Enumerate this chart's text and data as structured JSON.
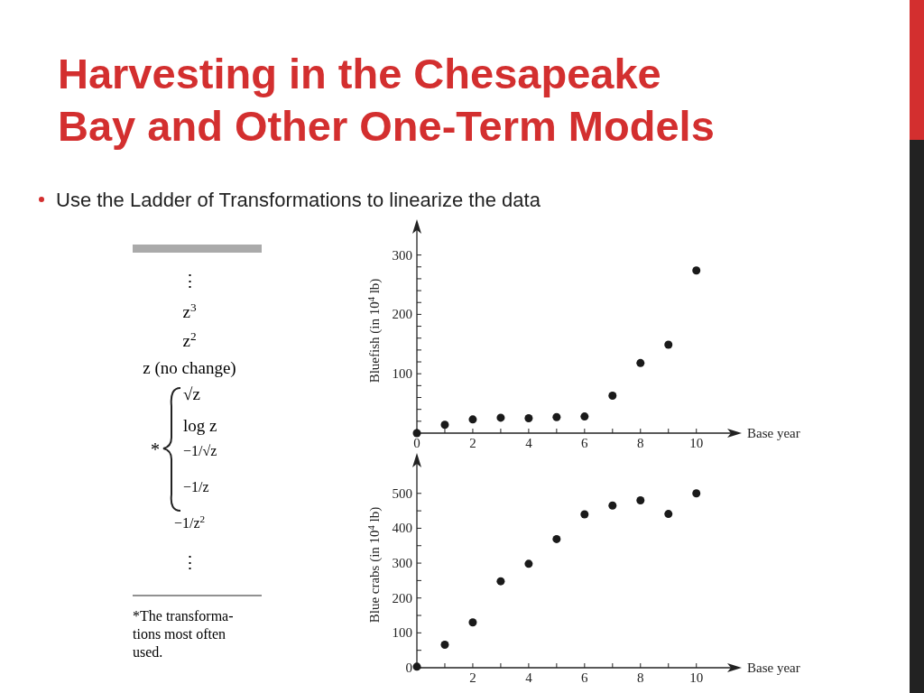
{
  "chart_data": [
    {
      "type": "other",
      "title": "Harvesting in the Chesapeake Bay and Other One-Term Models",
      "subtitle": "Use the Ladder of Transformations to linearize the data",
      "annotations": [
        "⋮",
        "z$^{3}$",
        "z$^{2}$",
        "z (no change)",
        "√z",
        "log z",
        "−1/√z",
        "−1/z",
        "−1/z$^{2}$",
        "⋮",
        "*",
        "*The transforma-",
        "tions most often",
        "used."
      ]
    },
    {
      "type": "scatter",
      "xlabel": "Base year",
      "ylabel": "Bluefish (in 10$^{4}$ lb)",
      "x": [
        0,
        1,
        2,
        3,
        4,
        5,
        6,
        7,
        8,
        9,
        10
      ],
      "marker": "circle",
      "grid": false,
      "series": [
        {
          "color": "#1a1a1a",
          "values": [
            0,
            14,
            23,
            26,
            25,
            27,
            28,
            63,
            118,
            149,
            274
          ]
        }
      ],
      "xlim": [
        0,
        11.3
      ],
      "ylim": [
        0,
        345
      ],
      "xticks": [
        0,
        {
          "value": 1,
          "label": null
        },
        2,
        {
          "value": 3,
          "label": null
        },
        4,
        {
          "value": 5,
          "label": null
        },
        6,
        {
          "value": 7,
          "label": null
        },
        8,
        {
          "value": 9,
          "label": null
        },
        10
      ],
      "yticks": [
        {
          "value": 20,
          "label": null
        },
        {
          "value": 40,
          "label": null
        },
        {
          "value": 60,
          "label": null
        },
        {
          "value": 80,
          "label": null
        },
        100,
        {
          "value": 120,
          "label": null
        },
        {
          "value": 140,
          "label": null
        },
        {
          "value": 160,
          "label": null
        },
        {
          "value": 180,
          "label": null
        },
        200,
        {
          "value": 220,
          "label": null
        },
        {
          "value": 240,
          "label": null
        },
        {
          "value": 260,
          "label": null
        },
        {
          "value": 280,
          "label": null
        },
        300
      ]
    },
    {
      "type": "scatter",
      "xlabel": "Base year",
      "ylabel": "Blue crabs (in 10$^{4}$ lb)",
      "x": [
        0,
        1,
        2,
        3,
        4,
        5,
        6,
        7,
        8,
        9,
        10
      ],
      "marker": "circle",
      "grid": false,
      "series": [
        {
          "color": "#1a1a1a",
          "values": [
            3,
            66,
            130,
            248,
            298,
            369,
            440,
            465,
            480,
            441,
            500
          ]
        }
      ],
      "xlim": [
        0,
        11.3
      ],
      "ylim": [
        0,
        590
      ],
      "xticks": [
        {
          "value": 0,
          "label": null
        },
        {
          "value": 1,
          "label": null
        },
        2,
        {
          "value": 3,
          "label": null
        },
        4,
        {
          "value": 5,
          "label": null
        },
        6,
        {
          "value": 7,
          "label": null
        },
        8,
        {
          "value": 9,
          "label": null
        },
        10
      ],
      "yticks": [
        0,
        {
          "value": 50,
          "label": null
        },
        100,
        {
          "value": 150,
          "label": null
        },
        200,
        {
          "value": 250,
          "label": null
        },
        300,
        {
          "value": 350,
          "label": null
        },
        400,
        {
          "value": 450,
          "label": null
        },
        500
      ]
    }
  ]
}
